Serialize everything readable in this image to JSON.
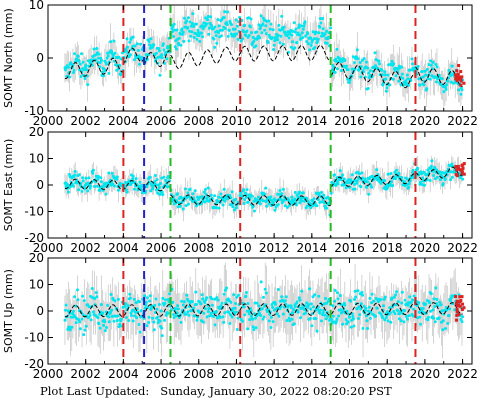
{
  "footer": {
    "label": "Plot Last Updated:",
    "datetime": "Sunday, January 30, 2022 08:20:20 PST"
  },
  "colors": {
    "data": "#00e5ee",
    "error_bars": "#b8b8b8",
    "model": "#000000",
    "recent": "#dd2222",
    "red_marker": "#dd2222",
    "blue_marker": "#2222cc",
    "green_marker": "#22bb22"
  },
  "chart_data": [
    {
      "type": "scatter",
      "ylabel": "SOMT North (mm)",
      "xlim": [
        2000,
        2022.5
      ],
      "ylim": [
        -10,
        10
      ],
      "yticks": [
        -10,
        0,
        10
      ],
      "xticks": [
        2000,
        2002,
        2004,
        2006,
        2008,
        2010,
        2012,
        2014,
        2016,
        2018,
        2020,
        2022
      ],
      "show_xtick_labels": true,
      "series": [
        {
          "kind": "observations",
          "segments": [
            {
              "x": [
                2000.9,
                2004.0
              ],
              "y": [
                -2,
                0
              ]
            },
            {
              "x": [
                2004.0,
                2005.1
              ],
              "y": [
                1,
                1.5
              ]
            },
            {
              "x": [
                2005.1,
                2006.5
              ],
              "y": [
                0,
                1.5
              ]
            },
            {
              "x": [
                2006.5,
                2010.2
              ],
              "y": [
                5,
                6
              ]
            },
            {
              "x": [
                2010.2,
                2015.0
              ],
              "y": [
                5,
                4
              ]
            },
            {
              "x": [
                2015.0,
                2019.5
              ],
              "y": [
                -1,
                -4
              ]
            },
            {
              "x": [
                2019.5,
                2022.0
              ],
              "y": [
                -3,
                -5
              ]
            }
          ]
        },
        {
          "kind": "model",
          "segments": [
            {
              "x": [
                2000.9,
                2004.0
              ],
              "y": [
                -2.5,
                -1.2
              ]
            },
            {
              "x": [
                2004.0,
                2005.1
              ],
              "y": [
                0.2,
                0.8
              ]
            },
            {
              "x": [
                2005.1,
                2006.5
              ],
              "y": [
                -0.5,
                0
              ]
            },
            {
              "x": [
                2006.5,
                2010.2
              ],
              "y": [
                -0.8,
                1
              ]
            },
            {
              "x": [
                2010.2,
                2015.0
              ],
              "y": [
                0.8,
                1
              ]
            },
            {
              "x": [
                2015.0,
                2019.5
              ],
              "y": [
                -2,
                -4.5
              ]
            },
            {
              "x": [
                2019.5,
                2022.0
              ],
              "y": [
                -3,
                -4
              ]
            }
          ],
          "amplitude": 1.4
        },
        {
          "kind": "recent",
          "x": [
            2021.6,
            2022.1
          ],
          "y": [
            -4,
            -3
          ]
        }
      ],
      "noise": 2.0,
      "error_size": 2.6
    },
    {
      "type": "scatter",
      "ylabel": "SOMT East (mm)",
      "xlim": [
        2000,
        2022.5
      ],
      "ylim": [
        -20,
        20
      ],
      "yticks": [
        -20,
        -10,
        0,
        10,
        20
      ],
      "xticks": [
        2000,
        2002,
        2004,
        2006,
        2008,
        2010,
        2012,
        2014,
        2016,
        2018,
        2020,
        2022
      ],
      "show_xtick_labels": true,
      "series": [
        {
          "kind": "observations",
          "segments": [
            {
              "x": [
                2000.9,
                2006.5
              ],
              "y": [
                1,
                0
              ]
            },
            {
              "x": [
                2006.5,
                2015.0
              ],
              "y": [
                -5,
                -6
              ]
            },
            {
              "x": [
                2015.0,
                2019.5
              ],
              "y": [
                1,
                2.5
              ]
            },
            {
              "x": [
                2019.5,
                2022.0
              ],
              "y": [
                3,
                5.5
              ]
            }
          ]
        },
        {
          "kind": "model",
          "segments": [
            {
              "x": [
                2000.9,
                2006.5
              ],
              "y": [
                0.5,
                -0.5
              ]
            },
            {
              "x": [
                2006.5,
                2015.0
              ],
              "y": [
                -5.5,
                -6
              ]
            },
            {
              "x": [
                2015.0,
                2019.5
              ],
              "y": [
                1,
                2.5
              ]
            },
            {
              "x": [
                2019.5,
                2022.0
              ],
              "y": [
                3,
                5.5
              ]
            }
          ],
          "amplitude": 1.8
        },
        {
          "kind": "recent",
          "x": [
            2021.6,
            2022.1
          ],
          "y": [
            5,
            7
          ]
        }
      ],
      "noise": 2.5,
      "error_size": 3.5
    },
    {
      "type": "scatter",
      "ylabel": "SOMT Up (mm)",
      "xlim": [
        2000,
        2022.5
      ],
      "ylim": [
        -20,
        20
      ],
      "yticks": [
        -20,
        -10,
        0,
        10,
        20
      ],
      "xticks": [
        2000,
        2002,
        2004,
        2006,
        2008,
        2010,
        2012,
        2014,
        2016,
        2018,
        2020,
        2022
      ],
      "show_xtick_labels": true,
      "series": [
        {
          "kind": "observations",
          "segments": [
            {
              "x": [
                2000.9,
                2022.0
              ],
              "y": [
                0,
                1
              ]
            }
          ]
        },
        {
          "kind": "model",
          "segments": [
            {
              "x": [
                2000.9,
                2022.0
              ],
              "y": [
                0,
                1
              ]
            }
          ],
          "amplitude": 2.2
        },
        {
          "kind": "recent",
          "x": [
            2021.6,
            2022.1
          ],
          "y": [
            -2,
            4
          ]
        }
      ],
      "noise": 5.5,
      "error_size": 8
    }
  ],
  "event_lines": [
    {
      "x": 2004.0,
      "color": "red"
    },
    {
      "x": 2005.1,
      "color": "blue"
    },
    {
      "x": 2006.5,
      "color": "green"
    },
    {
      "x": 2010.2,
      "color": "red"
    },
    {
      "x": 2015.0,
      "color": "green"
    },
    {
      "x": 2019.5,
      "color": "red"
    }
  ]
}
